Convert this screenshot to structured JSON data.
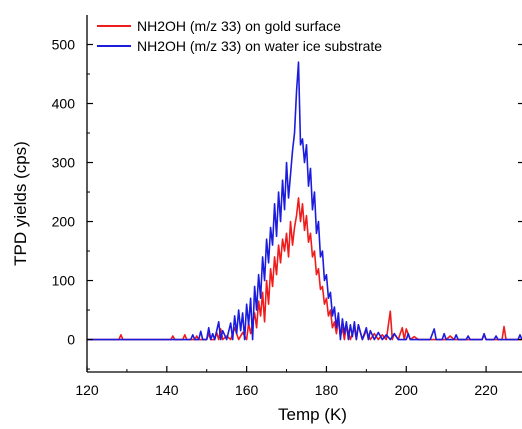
{
  "chart_data": {
    "type": "line",
    "xlabel": "Temp (K)",
    "ylabel": "TPD yields (cps)",
    "xlim": [
      120,
      229
    ],
    "ylim": [
      -55,
      550
    ],
    "x_ticks": [
      120,
      140,
      160,
      180,
      200,
      220
    ],
    "y_ticks": [
      0,
      100,
      200,
      300,
      400,
      500
    ],
    "legend_position": "top-left",
    "grid": false,
    "series": [
      {
        "name": "NH2OH (m/z 33) on gold surface",
        "color": "#ee1c1c",
        "points": [
          [
            120,
            0
          ],
          [
            125,
            0
          ],
          [
            128,
            0
          ],
          [
            128.5,
            8
          ],
          [
            129,
            0
          ],
          [
            135,
            0
          ],
          [
            141,
            0
          ],
          [
            141.5,
            6
          ],
          [
            142,
            0
          ],
          [
            144,
            0
          ],
          [
            144.5,
            8
          ],
          [
            145,
            0
          ],
          [
            147,
            0
          ],
          [
            147.5,
            6
          ],
          [
            148,
            0
          ],
          [
            150,
            0
          ],
          [
            150.5,
            10
          ],
          [
            151,
            0
          ],
          [
            152,
            0
          ],
          [
            152.5,
            12
          ],
          [
            153,
            0
          ],
          [
            153.5,
            18
          ],
          [
            154,
            0
          ],
          [
            155,
            6
          ],
          [
            156,
            0
          ],
          [
            157,
            20
          ],
          [
            158,
            0
          ],
          [
            159,
            12
          ],
          [
            160,
            0
          ],
          [
            160.5,
            28
          ],
          [
            161,
            10
          ],
          [
            162,
            45
          ],
          [
            162.5,
            20
          ],
          [
            163,
            65
          ],
          [
            163.5,
            40
          ],
          [
            164,
            80
          ],
          [
            164.5,
            30
          ],
          [
            165,
            100
          ],
          [
            165.5,
            60
          ],
          [
            166,
            120
          ],
          [
            166.5,
            90
          ],
          [
            167,
            140
          ],
          [
            167.5,
            110
          ],
          [
            168,
            160
          ],
          [
            168.5,
            130
          ],
          [
            169,
            170
          ],
          [
            169.5,
            150
          ],
          [
            170,
            180
          ],
          [
            170.5,
            140
          ],
          [
            171,
            200
          ],
          [
            171.5,
            160
          ],
          [
            172,
            190
          ],
          [
            172.5,
            210
          ],
          [
            173,
            240
          ],
          [
            173.5,
            200
          ],
          [
            174,
            230
          ],
          [
            174.5,
            185
          ],
          [
            175,
            210
          ],
          [
            175.5,
            165
          ],
          [
            176,
            180
          ],
          [
            176.5,
            140
          ],
          [
            177,
            150
          ],
          [
            177.5,
            110
          ],
          [
            178,
            120
          ],
          [
            178.5,
            85
          ],
          [
            179,
            90
          ],
          [
            179.5,
            60
          ],
          [
            180,
            70
          ],
          [
            180.5,
            40
          ],
          [
            181,
            50
          ],
          [
            181.5,
            20
          ],
          [
            182,
            30
          ],
          [
            182.5,
            10
          ],
          [
            183,
            35
          ],
          [
            183.5,
            5
          ],
          [
            184,
            20
          ],
          [
            184.5,
            0
          ],
          [
            185,
            25
          ],
          [
            186,
            0
          ],
          [
            187,
            20
          ],
          [
            187.5,
            0
          ],
          [
            188,
            25
          ],
          [
            189,
            0
          ],
          [
            190,
            15
          ],
          [
            191,
            0
          ],
          [
            192,
            10
          ],
          [
            193,
            0
          ],
          [
            194,
            8
          ],
          [
            195,
            0
          ],
          [
            196,
            48
          ],
          [
            196.5,
            0
          ],
          [
            197,
            10
          ],
          [
            198,
            0
          ],
          [
            199,
            20
          ],
          [
            199.5,
            0
          ],
          [
            200,
            18
          ],
          [
            201,
            0
          ],
          [
            202,
            5
          ],
          [
            203,
            0
          ],
          [
            210,
            0
          ],
          [
            211,
            6
          ],
          [
            212,
            0
          ],
          [
            219,
            0
          ],
          [
            219.5,
            8
          ],
          [
            220,
            0
          ],
          [
            224,
            0
          ],
          [
            224.5,
            22
          ],
          [
            225,
            0
          ],
          [
            229,
            0
          ]
        ]
      },
      {
        "name": "NH2OH (m/z 33) on water ice substrate",
        "color": "#1c1cdc",
        "points": [
          [
            120,
            0
          ],
          [
            146,
            0
          ],
          [
            146.5,
            8
          ],
          [
            147,
            0
          ],
          [
            148,
            0
          ],
          [
            148.5,
            14
          ],
          [
            149,
            0
          ],
          [
            150,
            0
          ],
          [
            150.5,
            20
          ],
          [
            151,
            0
          ],
          [
            151.5,
            10
          ],
          [
            152,
            0
          ],
          [
            153,
            30
          ],
          [
            153.5,
            0
          ],
          [
            154,
            15
          ],
          [
            155,
            0
          ],
          [
            156,
            28
          ],
          [
            156.5,
            0
          ],
          [
            157,
            40
          ],
          [
            157.5,
            10
          ],
          [
            158,
            50
          ],
          [
            158.5,
            15
          ],
          [
            159,
            45
          ],
          [
            159.5,
            0
          ],
          [
            160,
            60
          ],
          [
            160.5,
            25
          ],
          [
            161,
            70
          ],
          [
            161.5,
            0
          ],
          [
            162,
            90
          ],
          [
            162.5,
            50
          ],
          [
            163,
            110
          ],
          [
            163.5,
            70
          ],
          [
            164,
            140
          ],
          [
            164.5,
            100
          ],
          [
            165,
            170
          ],
          [
            165.5,
            130
          ],
          [
            166,
            190
          ],
          [
            166.5,
            160
          ],
          [
            167,
            230
          ],
          [
            167.5,
            175
          ],
          [
            168,
            250
          ],
          [
            168.5,
            200
          ],
          [
            169,
            270
          ],
          [
            169.5,
            220
          ],
          [
            170,
            300
          ],
          [
            170.5,
            240
          ],
          [
            171,
            280
          ],
          [
            171.5,
            320
          ],
          [
            172,
            350
          ],
          [
            172.5,
            420
          ],
          [
            173,
            470
          ],
          [
            173.5,
            330
          ],
          [
            174,
            340
          ],
          [
            174.5,
            300
          ],
          [
            175,
            330
          ],
          [
            175.5,
            260
          ],
          [
            176,
            290
          ],
          [
            176.5,
            220
          ],
          [
            177,
            250
          ],
          [
            177.5,
            180
          ],
          [
            178,
            200
          ],
          [
            178.5,
            140
          ],
          [
            179,
            150
          ],
          [
            179.5,
            100
          ],
          [
            180,
            110
          ],
          [
            180.5,
            70
          ],
          [
            181,
            80
          ],
          [
            181.5,
            40
          ],
          [
            182,
            55
          ],
          [
            182.5,
            20
          ],
          [
            183,
            45
          ],
          [
            183.5,
            0
          ],
          [
            184,
            35
          ],
          [
            184.5,
            10
          ],
          [
            185,
            30
          ],
          [
            185.5,
            0
          ],
          [
            186,
            25
          ],
          [
            186.5,
            5
          ],
          [
            187,
            30
          ],
          [
            187.5,
            0
          ],
          [
            188,
            25
          ],
          [
            189,
            0
          ],
          [
            190,
            20
          ],
          [
            190.5,
            0
          ],
          [
            191,
            15
          ],
          [
            192,
            0
          ],
          [
            193,
            12
          ],
          [
            194,
            0
          ],
          [
            195,
            8
          ],
          [
            196,
            0
          ],
          [
            197,
            10
          ],
          [
            198,
            0
          ],
          [
            200,
            0
          ],
          [
            200.5,
            10
          ],
          [
            201,
            0
          ],
          [
            205,
            0
          ],
          [
            206,
            0
          ],
          [
            207,
            18
          ],
          [
            207.5,
            0
          ],
          [
            209,
            0
          ],
          [
            209.5,
            10
          ],
          [
            210,
            0
          ],
          [
            212,
            0
          ],
          [
            212.5,
            8
          ],
          [
            213,
            0
          ],
          [
            215,
            0
          ],
          [
            215.5,
            6
          ],
          [
            216,
            0
          ],
          [
            219,
            0
          ],
          [
            219.5,
            10
          ],
          [
            220,
            0
          ],
          [
            222,
            0
          ],
          [
            222.5,
            6
          ],
          [
            223,
            0
          ],
          [
            228,
            0
          ],
          [
            228.5,
            8
          ],
          [
            229,
            0
          ]
        ]
      }
    ]
  }
}
